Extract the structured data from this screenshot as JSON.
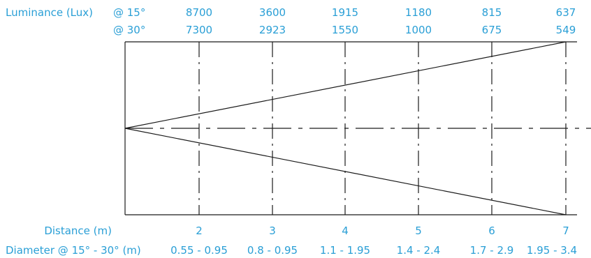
{
  "colors": {
    "label": "#2a9fd6",
    "line": "#1a1a1a"
  },
  "luminance": {
    "title": "Luminance (Lux)",
    "row15": {
      "label": "@ 15°",
      "values": [
        "8700",
        "3600",
        "1915",
        "1180",
        "815",
        "637"
      ]
    },
    "row30": {
      "label": "@ 30°",
      "values": [
        "7300",
        "2923",
        "1550",
        "1000",
        "675",
        "549"
      ]
    }
  },
  "distance": {
    "label": "Distance (m)",
    "values": [
      "2",
      "3",
      "4",
      "5",
      "6",
      "7"
    ]
  },
  "diameter": {
    "label": "Diameter @ 15° - 30° (m)",
    "values": [
      "0.55 - 0.95",
      "0.8 - 0.95",
      "1.1 - 1.95",
      "1.4 - 2.4",
      "1.7 - 2.9",
      "1.95 - 3.4"
    ]
  }
}
